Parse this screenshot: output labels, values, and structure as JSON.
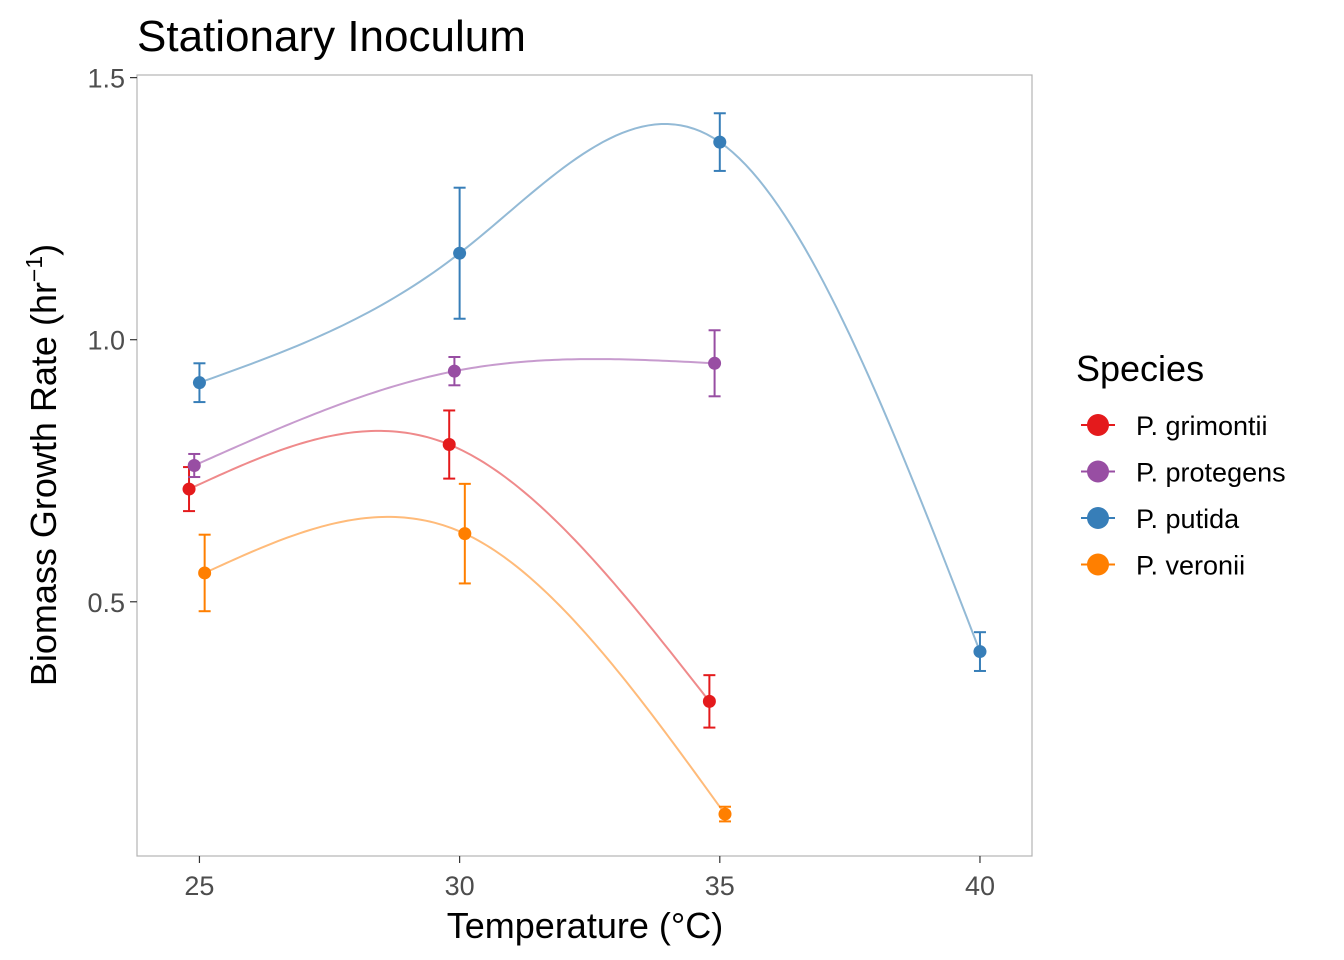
{
  "chart_data": {
    "type": "line",
    "title": "Stationary Inoculum",
    "xlabel": "Temperature (°C)",
    "ylabel": "Biomass Growth Rate (hr",
    "ylabel_sup": "−1",
    "ylabel_close": ")",
    "xlim": [
      23.8,
      41.0
    ],
    "ylim": [
      0.015,
      1.505
    ],
    "x_ticks": [
      25,
      30,
      35,
      40
    ],
    "x_tick_labels": [
      "25",
      "30",
      "35",
      "40"
    ],
    "y_ticks": [
      0.5,
      1.0,
      1.5
    ],
    "y_tick_labels": [
      "0.5",
      "1.0",
      "1.5"
    ],
    "grid": false,
    "legend_title": "Species",
    "legend_position": "right",
    "series": [
      {
        "name": "P. grimontii",
        "color": "#E41A1C",
        "line_color": "#EF8A8B",
        "points": [
          {
            "x": 24.8,
            "y": 0.715,
            "err": 0.042
          },
          {
            "x": 29.8,
            "y": 0.8,
            "err": 0.065
          },
          {
            "x": 34.8,
            "y": 0.31,
            "err": 0.05
          }
        ]
      },
      {
        "name": "P. protegens",
        "color": "#984EA3",
        "line_color": "#C79BCE",
        "points": [
          {
            "x": 24.9,
            "y": 0.76,
            "err": 0.022
          },
          {
            "x": 29.9,
            "y": 0.94,
            "err": 0.027
          },
          {
            "x": 34.9,
            "y": 0.955,
            "err": 0.063
          }
        ]
      },
      {
        "name": "P. putida",
        "color": "#377EB8",
        "line_color": "#93BAD6",
        "points": [
          {
            "x": 25.0,
            "y": 0.918,
            "err": 0.037
          },
          {
            "x": 30.0,
            "y": 1.165,
            "err": 0.125
          },
          {
            "x": 35.0,
            "y": 1.377,
            "err": 0.055
          },
          {
            "x": 40.0,
            "y": 0.405,
            "err": 0.037
          }
        ]
      },
      {
        "name": "P. veronii",
        "color": "#FF7F00",
        "line_color": "#FFBB7A",
        "points": [
          {
            "x": 25.1,
            "y": 0.555,
            "err": 0.073
          },
          {
            "x": 30.1,
            "y": 0.63,
            "err": 0.095
          },
          {
            "x": 35.1,
            "y": 0.095,
            "err": 0.014
          }
        ]
      }
    ]
  }
}
